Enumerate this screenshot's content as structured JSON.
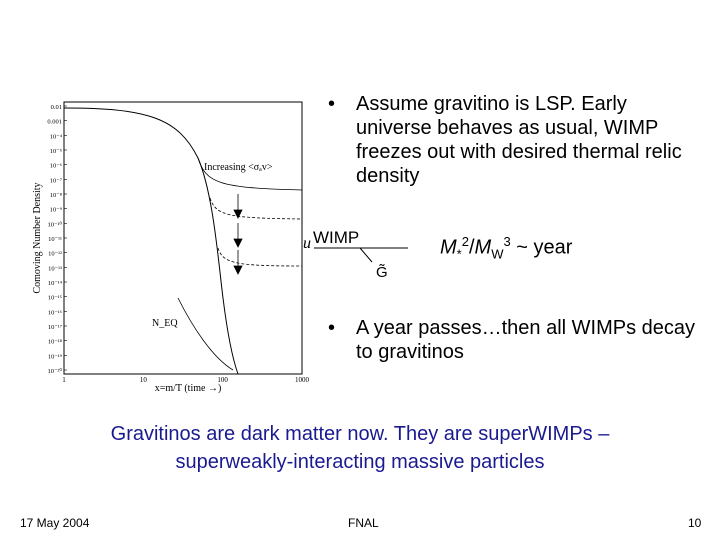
{
  "bullets": [
    {
      "text": "Assume gravitino is LSP. Early universe behaves as usual, WIMP freezes out with desired thermal relic density"
    },
    {
      "text": "A year passes…then all WIMPs decay to gravitinos"
    }
  ],
  "bullet_symbol": "•",
  "decay": {
    "incoming_label": "WIMP",
    "outgoing_label": "G̃",
    "lifetime_lhs_base": "M",
    "lifetime_lhs_sub": "*",
    "lifetime_lhs_exp": "2",
    "lifetime_div": "/",
    "lifetime_rhs_base": "M",
    "lifetime_rhs_sub": "W",
    "lifetime_rhs_exp": "3",
    "lifetime_relation": " ~ year"
  },
  "conclusion_line1": "Gravitinos are dark matter now.  They are superWIMPs –",
  "conclusion_line2": "superweakly-interacting massive particles",
  "footer": {
    "date": "17 May 2004",
    "venue": "FNAL",
    "page": "10"
  },
  "figure": {
    "ylabel": "Comoving Number Density",
    "xlabel": "x=m/T (time →)",
    "y_tick_labels": [
      "0.01",
      "0.001",
      "10⁻⁴",
      "10⁻⁵",
      "10⁻⁶",
      "10⁻⁷",
      "10⁻⁸",
      "10⁻⁹",
      "10⁻¹⁰",
      "10⁻¹¹",
      "10⁻¹²",
      "10⁻¹³",
      "10⁻¹⁴",
      "10⁻¹⁵",
      "10⁻¹⁶",
      "10⁻¹⁷",
      "10⁻¹⁸",
      "10⁻¹⁹",
      "10⁻²⁰"
    ],
    "x_tick_labels": [
      "1",
      "10",
      "100",
      "1000"
    ],
    "annotation": "Increasing <σₐv>",
    "neq_label": "N_EQ"
  }
}
